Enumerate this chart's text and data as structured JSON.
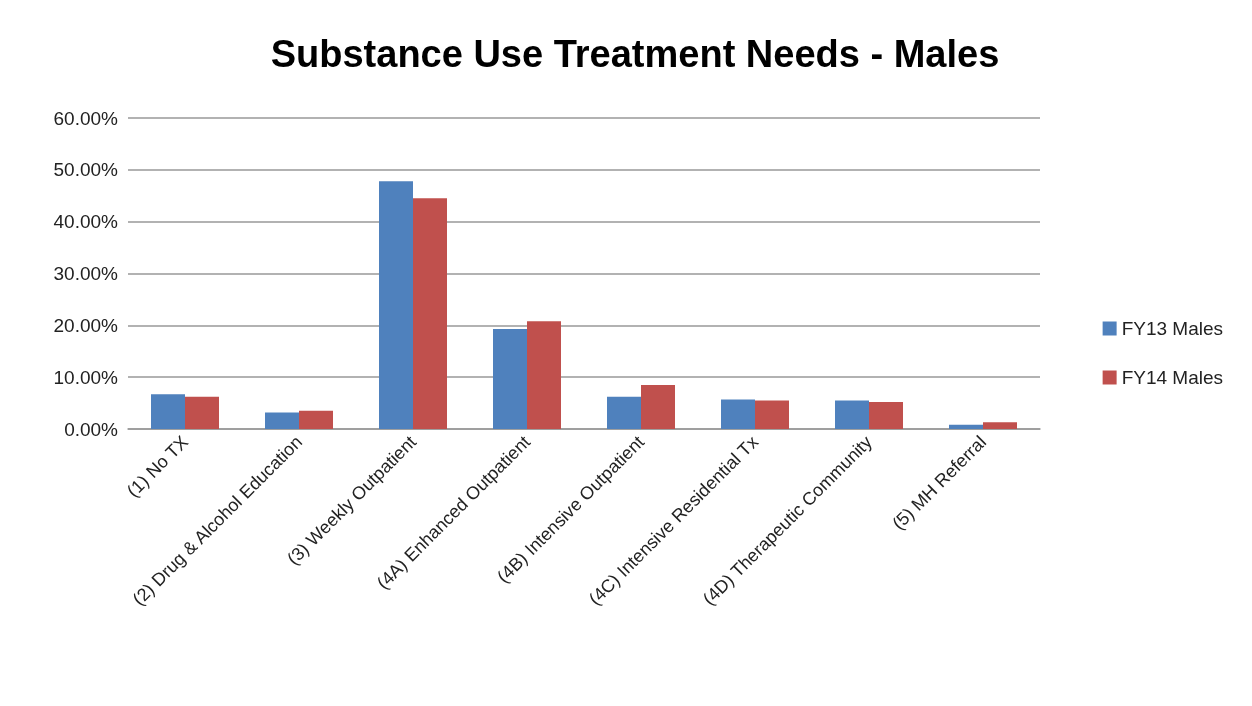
{
  "chart_data": {
    "type": "bar",
    "title": "Substance Use Treatment Needs - Males",
    "categories": [
      "(1) No TX",
      "(2) Drug & Alcohol Education",
      "(3) Weekly Outpatient",
      "(4A) Enhanced Outpatient",
      "(4B) Intensive Outpatient",
      "(4C) Intensive Residential Tx",
      "(4D) Therapeutic Community",
      "(5) MH Referral"
    ],
    "series": [
      {
        "name": "FY13 Males",
        "color": "#4f81bd",
        "values": [
          6.7,
          3.2,
          47.8,
          19.3,
          6.2,
          5.7,
          5.5,
          0.8
        ]
      },
      {
        "name": "FY14 Males",
        "color": "#c0504d",
        "values": [
          6.2,
          3.5,
          44.5,
          20.8,
          8.5,
          5.5,
          5.2,
          1.3
        ]
      }
    ],
    "ylim": [
      0,
      60
    ],
    "yticks": [
      {
        "value": 0,
        "label": "0.00%"
      },
      {
        "value": 10,
        "label": "10.00%"
      },
      {
        "value": 20,
        "label": "20.00%"
      },
      {
        "value": 30,
        "label": "30.00%"
      },
      {
        "value": 40,
        "label": "40.00%"
      },
      {
        "value": 50,
        "label": "50.00%"
      },
      {
        "value": 60,
        "label": "60.00%"
      }
    ],
    "grid": "y",
    "legend": "right"
  }
}
